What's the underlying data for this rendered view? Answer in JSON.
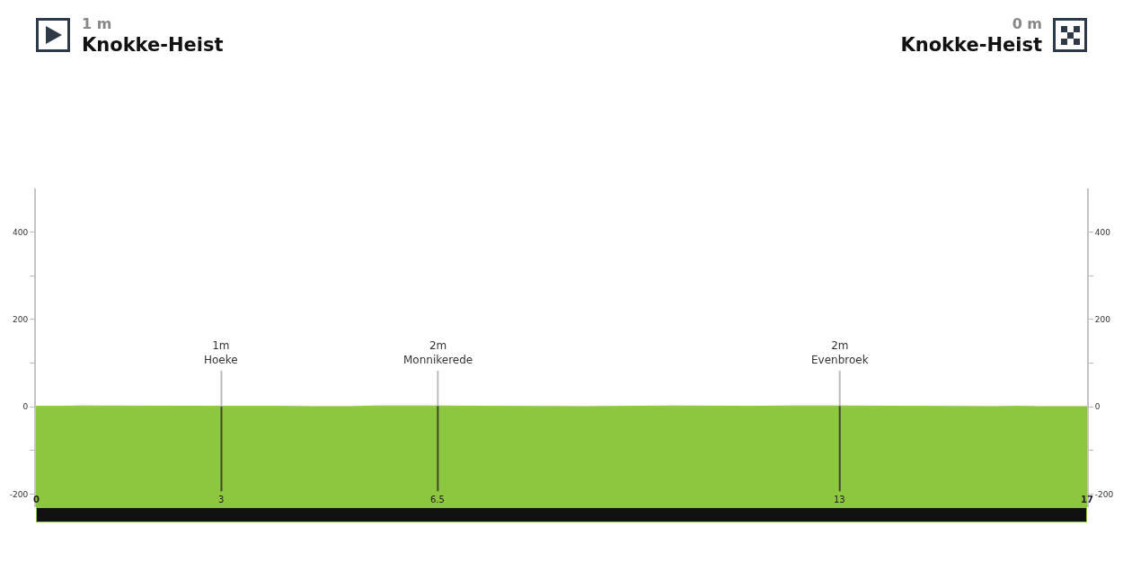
{
  "chart_data": {
    "type": "area",
    "annotations": [
      "1 m",
      "Knokke-Heist",
      "0 m",
      "Knokke-Heist"
    ],
    "x": [
      0,
      0.4,
      0.7,
      3,
      3.9,
      4.5,
      5.1,
      5.5,
      6.5,
      7.4,
      8.9,
      10.3,
      11.6,
      12.2,
      13,
      14.2,
      15.5,
      15.9,
      16.2,
      17
    ],
    "values": [
      1,
      1,
      2,
      1,
      1,
      0,
      0,
      2,
      2,
      1,
      0,
      2,
      1,
      2,
      2,
      1,
      0,
      1,
      0,
      0
    ],
    "color": "#8dc63f",
    "xlim": [
      0,
      17
    ],
    "xticks": [
      0,
      3,
      6.5,
      13,
      17
    ],
    "ylim": [
      -230,
      500
    ],
    "yticks": [
      -200,
      {
        "value": -100,
        "label": null
      },
      0,
      {
        "value": 100,
        "label": null
      },
      200,
      {
        "value": 300,
        "label": null
      },
      400
    ],
    "y2lim": [
      -230,
      500
    ],
    "y2ticks": [
      -200,
      {
        "value": -100,
        "label": null
      },
      0,
      {
        "value": 100,
        "label": null
      },
      200,
      {
        "value": 300,
        "label": null
      },
      400
    ],
    "bands": [
      {
        "axis": "y",
        "from": -230,
        "to": 0,
        "color": "#8dc63f"
      }
    ],
    "ref_lines": [
      {
        "axis": "x",
        "value": 3,
        "label": "1m\nHoeke"
      },
      {
        "axis": "x",
        "value": 6.5,
        "label": "2m\nMonnikerede"
      },
      {
        "axis": "x",
        "value": 13,
        "label": "2m\nEvenbroek"
      }
    ]
  }
}
